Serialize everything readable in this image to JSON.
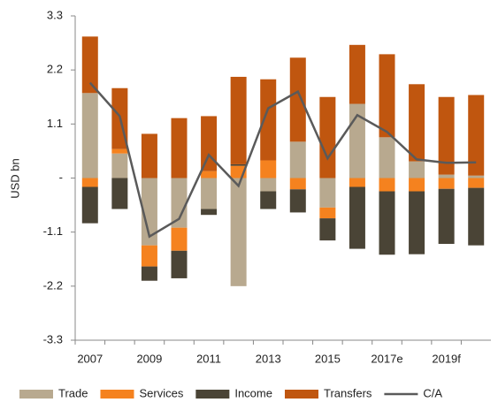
{
  "chart_data": {
    "type": "bar",
    "stacked": true,
    "y_label": "USD bn",
    "categories": [
      "2007",
      null,
      "2009",
      null,
      "2011",
      null,
      "2013",
      null,
      "2015",
      null,
      "2017e",
      null,
      "2019f",
      null
    ],
    "ylim": [
      -3.3,
      3.3
    ],
    "yticks": [
      -3.3,
      -2.2,
      -1.1,
      {
        "value": 0,
        "label": "-"
      },
      1.1,
      2.2,
      3.3
    ],
    "series": [
      {
        "name": "Trade",
        "color": "#b8a98f",
        "values": [
          1.73,
          0.5,
          -1.37,
          -1.01,
          -0.63,
          -2.2,
          -0.27,
          0.74,
          -0.6,
          1.51,
          0.83,
          0.34,
          0.07,
          0.05
        ]
      },
      {
        "name": "Services",
        "color": "#f5821f",
        "values": [
          -0.18,
          0.09,
          -0.43,
          -0.47,
          0.14,
          0.25,
          0.36,
          -0.23,
          -0.22,
          -0.18,
          -0.27,
          -0.27,
          -0.22,
          -0.2
        ]
      },
      {
        "name": "Income",
        "color": "#4a4436",
        "values": [
          -0.74,
          -0.63,
          -0.29,
          -0.56,
          -0.12,
          0.03,
          -0.36,
          -0.47,
          -0.45,
          -1.26,
          -1.29,
          -1.28,
          -1.12,
          -1.17
        ]
      },
      {
        "name": "Transfers",
        "color": "#c0560f",
        "values": [
          1.15,
          1.24,
          0.9,
          1.22,
          1.12,
          1.78,
          1.65,
          1.71,
          1.65,
          1.2,
          1.69,
          1.57,
          1.58,
          1.64
        ]
      },
      {
        "name": "C/A",
        "type": "line",
        "color": "#5a5a5a",
        "values": [
          1.94,
          1.26,
          -1.19,
          -0.83,
          0.47,
          -0.16,
          1.42,
          1.76,
          0.4,
          1.28,
          0.94,
          0.38,
          0.31,
          0.32
        ]
      }
    ]
  }
}
